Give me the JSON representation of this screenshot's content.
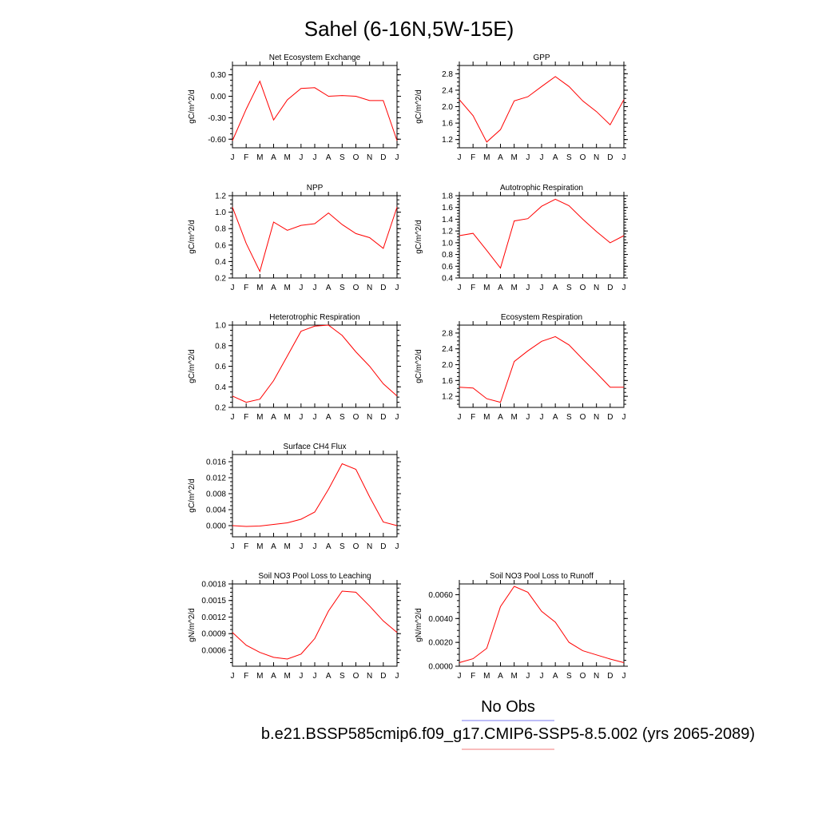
{
  "figure": {
    "title": "Sahel (6-16N,5W-15E)",
    "legend": [
      {
        "label": "No Obs",
        "color": "#7b7bf0"
      },
      {
        "label": "b.e21.BSSP585cmip6.f09_g17.CMIP6-SSP5-8.5.002 (yrs 2065-2089)",
        "color": "#f07b7b"
      }
    ],
    "series_color": "#ff0000"
  },
  "chart_data": [
    {
      "type": "line",
      "title": "Net Ecosystem Exchange",
      "ylabel": "gC/m^2/d",
      "x": [
        "J",
        "F",
        "M",
        "A",
        "M",
        "J",
        "J",
        "A",
        "S",
        "O",
        "N",
        "D",
        "J"
      ],
      "values": [
        -0.62,
        -0.18,
        0.21,
        -0.33,
        -0.05,
        0.11,
        0.12,
        0.0,
        0.01,
        0.0,
        -0.06,
        -0.06,
        -0.62
      ],
      "ylim": [
        -0.72,
        0.43
      ],
      "yticks": [
        -0.6,
        -0.3,
        0.0,
        0.3
      ],
      "yticklabels": [
        "-0.60",
        "-0.30",
        "0.00",
        "0.30"
      ]
    },
    {
      "type": "line",
      "title": "GPP",
      "ylabel": "gC/m^2/d",
      "x": [
        "J",
        "F",
        "M",
        "A",
        "M",
        "J",
        "J",
        "A",
        "S",
        "O",
        "N",
        "D",
        "J"
      ],
      "values": [
        2.17,
        1.78,
        1.14,
        1.44,
        2.14,
        2.24,
        2.49,
        2.73,
        2.49,
        2.14,
        1.88,
        1.56,
        2.17
      ],
      "ylim": [
        1.0,
        3.0
      ],
      "yticks": [
        1.2,
        1.6,
        2.0,
        2.4,
        2.8
      ],
      "yticklabels": [
        "1.2",
        "1.6",
        "2.0",
        "2.4",
        "2.8"
      ]
    },
    {
      "type": "line",
      "title": "NPP",
      "ylabel": "gC/m^2/d",
      "x": [
        "J",
        "F",
        "M",
        "A",
        "M",
        "J",
        "J",
        "A",
        "S",
        "O",
        "N",
        "D",
        "J"
      ],
      "values": [
        1.06,
        0.62,
        0.28,
        0.88,
        0.78,
        0.84,
        0.86,
        0.99,
        0.85,
        0.74,
        0.69,
        0.56,
        1.06
      ],
      "ylim": [
        0.2,
        1.2
      ],
      "yticks": [
        0.2,
        0.4,
        0.6,
        0.8,
        1.0,
        1.2
      ],
      "yticklabels": [
        "0.2",
        "0.4",
        "0.6",
        "0.8",
        "1.0",
        "1.2"
      ]
    },
    {
      "type": "line",
      "title": "Autotrophic Respiration",
      "ylabel": "gC/m^2/d",
      "x": [
        "J",
        "F",
        "M",
        "A",
        "M",
        "J",
        "J",
        "A",
        "S",
        "O",
        "N",
        "D",
        "J"
      ],
      "values": [
        1.12,
        1.16,
        0.87,
        0.57,
        1.37,
        1.41,
        1.62,
        1.74,
        1.63,
        1.4,
        1.19,
        1.0,
        1.12
      ],
      "ylim": [
        0.4,
        1.8
      ],
      "yticks": [
        0.4,
        0.6,
        0.8,
        1.0,
        1.2,
        1.4,
        1.6,
        1.8
      ],
      "yticklabels": [
        "0.4",
        "0.6",
        "0.8",
        "1.0",
        "1.2",
        "1.4",
        "1.6",
        "1.8"
      ]
    },
    {
      "type": "line",
      "title": "Heterotrophic Respiration",
      "ylabel": "gC/m^2/d",
      "x": [
        "J",
        "F",
        "M",
        "A",
        "M",
        "J",
        "J",
        "A",
        "S",
        "O",
        "N",
        "D",
        "J"
      ],
      "values": [
        0.31,
        0.25,
        0.28,
        0.46,
        0.7,
        0.94,
        0.99,
        1.0,
        0.9,
        0.74,
        0.6,
        0.43,
        0.31
      ],
      "ylim": [
        0.2,
        1.0
      ],
      "yticks": [
        0.2,
        0.4,
        0.6,
        0.8,
        1.0
      ],
      "yticklabels": [
        "0.2",
        "0.4",
        "0.6",
        "0.8",
        "1.0"
      ]
    },
    {
      "type": "line",
      "title": "Ecosystem Respiration",
      "ylabel": "gC/m^2/d",
      "x": [
        "J",
        "F",
        "M",
        "A",
        "M",
        "J",
        "J",
        "A",
        "S",
        "O",
        "N",
        "D",
        "J"
      ],
      "values": [
        1.43,
        1.41,
        1.14,
        1.05,
        2.08,
        2.35,
        2.59,
        2.71,
        2.5,
        2.14,
        1.79,
        1.43,
        1.43
      ],
      "ylim": [
        0.92,
        3.0
      ],
      "yticks": [
        1.2,
        1.6,
        2.0,
        2.4,
        2.8
      ],
      "yticklabels": [
        "1.2",
        "1.6",
        "2.0",
        "2.4",
        "2.8"
      ]
    },
    {
      "type": "line",
      "title": "Surface CH4 Flux",
      "ylabel": "gC/m^2/d",
      "x": [
        "J",
        "F",
        "M",
        "A",
        "M",
        "J",
        "J",
        "A",
        "S",
        "O",
        "N",
        "D",
        "J"
      ],
      "values": [
        0.0,
        -0.0002,
        -0.0001,
        0.0003,
        0.0007,
        0.0016,
        0.0034,
        0.0091,
        0.0155,
        0.0141,
        0.0072,
        0.0009,
        0.0
      ],
      "ylim": [
        -0.0028,
        0.0178
      ],
      "yticks": [
        0.0,
        0.004,
        0.008,
        0.012,
        0.016
      ],
      "yticklabels": [
        "0.000",
        "0.004",
        "0.008",
        "0.012",
        "0.016"
      ]
    },
    null,
    {
      "type": "line",
      "title": "Soil NO3 Pool Loss to Leaching",
      "ylabel": "gN/m^2/d",
      "x": [
        "J",
        "F",
        "M",
        "A",
        "M",
        "J",
        "J",
        "A",
        "S",
        "O",
        "N",
        "D",
        "J"
      ],
      "values": [
        0.00092,
        0.00069,
        0.00056,
        0.00047,
        0.00044,
        0.00053,
        0.00081,
        0.00131,
        0.00167,
        0.00165,
        0.0014,
        0.00113,
        0.00092
      ],
      "ylim": [
        0.00031,
        0.0018
      ],
      "yticks": [
        0.0006,
        0.0009,
        0.0012,
        0.0015,
        0.0018
      ],
      "yticklabels": [
        "0.0006",
        "0.0009",
        "0.0012",
        "0.0015",
        "0.0018"
      ]
    },
    {
      "type": "line",
      "title": "Soil NO3 Pool Loss to Runoff",
      "ylabel": "gN/m^2/d",
      "x": [
        "J",
        "F",
        "M",
        "A",
        "M",
        "J",
        "J",
        "A",
        "S",
        "O",
        "N",
        "D",
        "J"
      ],
      "values": [
        0.0003,
        0.00063,
        0.0015,
        0.005,
        0.0067,
        0.0062,
        0.0046,
        0.0037,
        0.002,
        0.0013,
        0.00095,
        0.0006,
        0.0003
      ],
      "ylim": [
        0.0,
        0.0069
      ],
      "yticks": [
        0.0,
        0.002,
        0.004,
        0.006
      ],
      "yticklabels": [
        "0.0000",
        "0.0020",
        "0.0040",
        "0.0060"
      ]
    }
  ]
}
